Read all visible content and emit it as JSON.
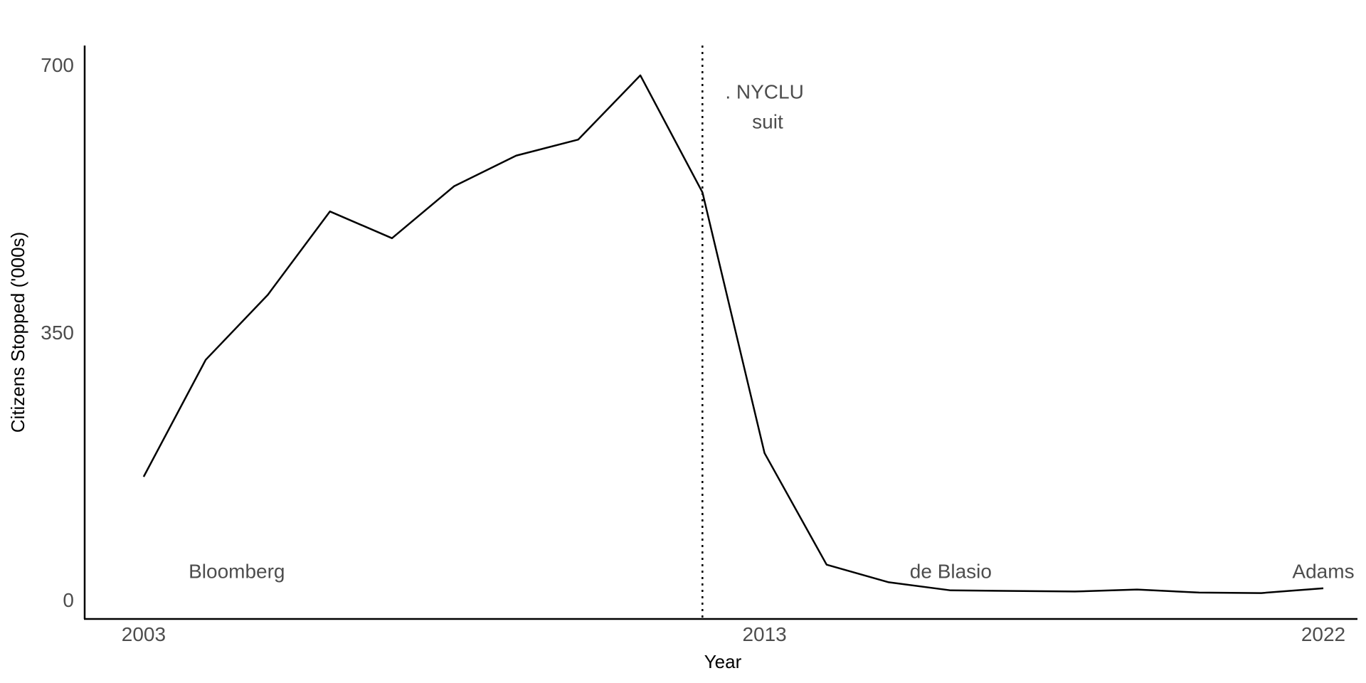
{
  "chart_data": {
    "type": "line",
    "title": "",
    "xlabel": "Year",
    "ylabel": "Citizens Stopped ('000s)",
    "x": [
      2003,
      2004,
      2005,
      2006,
      2007,
      2008,
      2009,
      2010,
      2011,
      2012,
      2013,
      2014,
      2015,
      2016,
      2017,
      2018,
      2019,
      2020,
      2021,
      2022
    ],
    "series": [
      {
        "values": [
          161,
          314,
          399,
          508,
          473,
          541,
          581,
          602,
          686,
          533,
          192,
          46,
          23,
          12.4,
          11.6,
          10.9,
          13.5,
          9.5,
          8.9,
          15.1
        ],
        "color": "#000000"
      }
    ],
    "x_ticks": [
      "2003",
      "2013",
      "2022"
    ],
    "y_ticks": [
      "0",
      "350",
      "700"
    ],
    "xlim": [
      2002.05,
      2022.55
    ],
    "ylim": [
      -25,
      725
    ],
    "grid": false,
    "legend": "none",
    "reference_line": {
      "x": 2012,
      "style": "dotted"
    },
    "annotations": [
      {
        "text": ". NYCLU",
        "x": 2013.0,
        "y": 665
      },
      {
        "text": "suit",
        "x": 2013.05,
        "y": 626
      },
      {
        "text": "Bloomberg",
        "x": 2004.5,
        "y": 38
      },
      {
        "text": "de Blasio",
        "x": 2016.0,
        "y": 38
      },
      {
        "text": "Adams",
        "x": 2022.0,
        "y": 38
      }
    ]
  }
}
